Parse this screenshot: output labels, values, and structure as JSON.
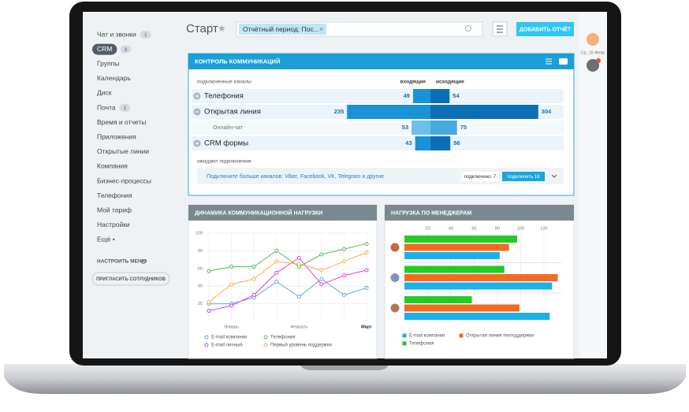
{
  "sidebar": {
    "items": [
      {
        "label": "Чат и звонки",
        "badge": 1
      },
      {
        "label": "CRM",
        "badge": 3,
        "active": true
      },
      {
        "label": "Группы"
      },
      {
        "label": "Календарь"
      },
      {
        "label": "Диск"
      },
      {
        "label": "Почта",
        "badge": 1
      },
      {
        "label": "Время и отчеты"
      },
      {
        "label": "Приложения"
      },
      {
        "label": "Открытые линии"
      },
      {
        "label": "Компания"
      },
      {
        "label": "Бизнес-процессы"
      },
      {
        "label": "Телефония"
      },
      {
        "label": "Мой тариф"
      },
      {
        "label": "Настройки"
      },
      {
        "label": "Ещё •"
      }
    ],
    "settings": "НАСТРОИТЬ МЕНЮ",
    "invite": "ПРИГЛАСИТЬ СОТРУДНИКОВ"
  },
  "header": {
    "title": "Старт",
    "filter": "Отчётный период: Пос...",
    "add_report": "ДОБАВИТЬ ОТЧЁТ",
    "date": "Ср, 15 Февр"
  },
  "communications": {
    "title": "КОНТРОЛЬ КОММУНИКАЦИЙ",
    "columns": [
      "подключенные каналы",
      "входящие",
      "исходящие"
    ],
    "rows": [
      {
        "name": "Телефония",
        "incoming": 49,
        "outgoing": 54
      },
      {
        "name": "Открытая линия",
        "incoming": 235,
        "outgoing": 304,
        "children": [
          {
            "name": "Онлайн-чат",
            "incoming": 53,
            "outgoing": 75
          }
        ]
      },
      {
        "name": "CRM формы",
        "incoming": 43,
        "outgoing": 56
      }
    ],
    "waiting": {
      "title": "ожидают подключения",
      "text": "Подключите больше каналов: Viber, Facebook, VK, Telegram и другие",
      "connected": "подключено: 7",
      "connect": "подключить 16"
    }
  },
  "chart_data": [
    {
      "type": "line",
      "title": "ДИНАМИКА КОММУНИКАЦИОННОЙ НАГРУЗКИ",
      "categories": [
        null,
        "Январь",
        null,
        null,
        "Февраль",
        null,
        null,
        "Март"
      ],
      "ylim": [
        0,
        100
      ],
      "yticks": [
        20,
        40,
        60,
        80,
        100
      ],
      "grid": true,
      "series": [
        {
          "name": "E-mail компании",
          "color": "#5aa9e6",
          "values": [
            20,
            20,
            27,
            45,
            28,
            48,
            30,
            38
          ]
        },
        {
          "name": "Телефония",
          "color": "#5cb85c",
          "values": [
            57,
            62,
            62,
            80,
            62,
            76,
            82,
            88
          ]
        },
        {
          "name": "E-mail личный",
          "color": "#e040e0",
          "values": [
            12,
            18,
            30,
            55,
            72,
            42,
            52,
            58
          ]
        },
        {
          "name": "Первый уровень поддержки",
          "color": "#f5b04a",
          "values": [
            22,
            42,
            48,
            68,
            65,
            58,
            68,
            78
          ]
        }
      ]
    },
    {
      "type": "barh",
      "title": "НАГРУЗКА ПО МЕНЕДЖЕРАМ",
      "categories": [
        null,
        null,
        null
      ],
      "xlim": [
        0,
        135
      ],
      "xticks": [
        20,
        40,
        60,
        80,
        100,
        120
      ],
      "grid": true,
      "series": [
        {
          "name": "E-mail компании",
          "color": "#1ab0e8",
          "values": [
            82,
            127,
            125
          ]
        },
        {
          "name": "Открытая линия техподдержки",
          "color": "#f26b21",
          "values": [
            90,
            132,
            99
          ]
        },
        {
          "name": "Телефония",
          "color": "#22cc22",
          "values": [
            97,
            86,
            58
          ]
        }
      ]
    }
  ]
}
